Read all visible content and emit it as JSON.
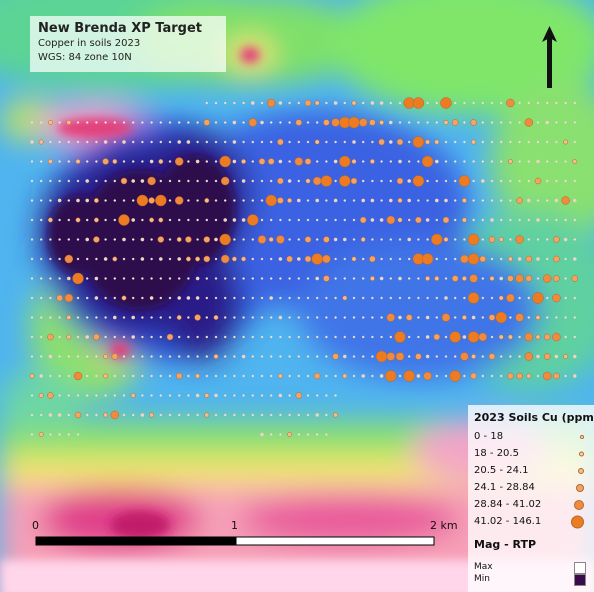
{
  "title": {
    "main": "New Brenda XP Target",
    "line1": "Copper in soils 2023",
    "line2": "WGS: 84 zone 10N"
  },
  "legend": {
    "title": "2023 Soils Cu (ppm)",
    "classes": [
      {
        "label": "0 - 18",
        "color": "#fde6d2"
      },
      {
        "label": "18 - 20.5",
        "color": "#fbd3b3"
      },
      {
        "label": "20.5 - 24.1",
        "color": "#f8bb8b"
      },
      {
        "label": "24.1 - 28.84",
        "color": "#f5a263"
      },
      {
        "label": "28.84 - 41.02",
        "color": "#f08a3e"
      },
      {
        "label": "41.02 - 146.1",
        "color": "#ec7b22"
      }
    ],
    "mag_title": "Mag - RTP",
    "mag_max": "Max",
    "mag_min": "Min",
    "mag_max_color": "#ffffff",
    "mag_min_color": "#3a0a4a"
  },
  "scale_bar": {
    "labels": [
      "0",
      "1",
      "2 km"
    ]
  },
  "north_arrow": {
    "icon": "north-arrow-icon"
  }
}
